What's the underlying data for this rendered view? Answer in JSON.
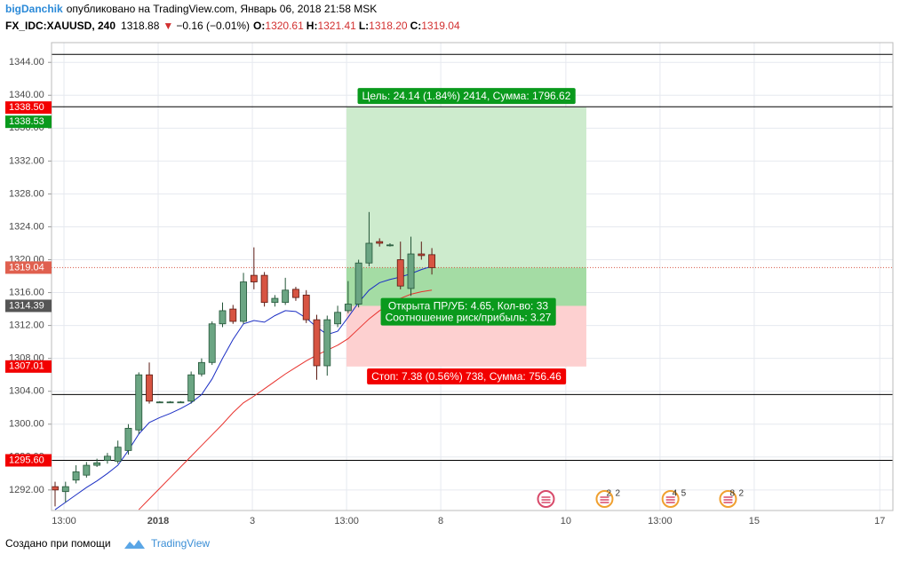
{
  "header": {
    "author": "bigDanchik",
    "published": "опубликовано на TradingView.com, Январь 06, 2018 21:58 MSK",
    "symbol": "FX_IDC:XAUUSD, 240",
    "last": "1318.88",
    "arrow": "▼",
    "change": "−0.16 (−0.01%)",
    "ohlc": [
      [
        "O:",
        "1320.61"
      ],
      [
        "H:",
        "1321.41"
      ],
      [
        "L:",
        "1318.20"
      ],
      [
        "C:",
        "1319.04"
      ]
    ]
  },
  "footer": {
    "text": "Создано при помощи",
    "brand": "TradingView"
  },
  "chart_data": {
    "type": "candlestick",
    "x": [
      0,
      1,
      2,
      3,
      4,
      5,
      6,
      7,
      8,
      9,
      10,
      11,
      12,
      13,
      14,
      15,
      16,
      17,
      18,
      19,
      20,
      21,
      22,
      23,
      24,
      25,
      26,
      27,
      28,
      29,
      30,
      31,
      32,
      33,
      34,
      35,
      36
    ],
    "open": [
      1292.4,
      1291.8,
      1293.2,
      1293.8,
      1295.0,
      1295.6,
      1295.5,
      1296.8,
      1299.3,
      1306.0,
      1302.7,
      1302.7,
      1302.7,
      1302.8,
      1306.1,
      1307.5,
      1312.2,
      1314.0,
      1312.5,
      1318.1,
      1318.1,
      1314.8,
      1314.8,
      1316.4,
      1315.7,
      1312.7,
      1307.1,
      1312.2,
      1313.8,
      1314.6,
      1319.6,
      1322.2,
      1321.8,
      1320.0,
      1316.5,
      1320.7,
      1320.61
    ],
    "high": [
      1293,
      1293,
      1295,
      1295.4,
      1295.8,
      1296.5,
      1298,
      1300,
      1306.3,
      1307.5,
      1302.8,
      1302.8,
      1302.8,
      1306.4,
      1308,
      1312.5,
      1314.8,
      1314.5,
      1318.4,
      1321.5,
      1318.5,
      1315.7,
      1317.8,
      1316.7,
      1316.3,
      1313.3,
      1313.2,
      1314.4,
      1317.4,
      1320.0,
      1325.8,
      1322.6,
      1322.0,
      1322.2,
      1322.8,
      1322.2,
      1321.41
    ],
    "low": [
      1290,
      1290.5,
      1292.8,
      1293.5,
      1294.8,
      1295.2,
      1295.2,
      1296.3,
      1298.8,
      1302.5,
      1302.6,
      1302.6,
      1302.6,
      1302.5,
      1305.8,
      1307.2,
      1311.8,
      1312.2,
      1312.2,
      1316.4,
      1314.3,
      1314.3,
      1314.5,
      1315.0,
      1312.3,
      1305.4,
      1305.9,
      1311.8,
      1313.5,
      1314.2,
      1319.2,
      1321.6,
      1321.6,
      1316.4,
      1315.6,
      1320.0,
      1318.2
    ],
    "close": [
      1292.0,
      1292.4,
      1294.2,
      1295.0,
      1295.3,
      1296.1,
      1297.2,
      1299.5,
      1306.0,
      1302.8,
      1302.7,
      1302.7,
      1302.7,
      1306.0,
      1307.5,
      1312.2,
      1313.8,
      1312.5,
      1317.3,
      1317.3,
      1314.8,
      1315.3,
      1316.3,
      1315.4,
      1312.7,
      1307.1,
      1312.7,
      1313.6,
      1314.6,
      1319.6,
      1322.0,
      1322.0,
      1321.8,
      1316.8,
      1320.7,
      1320.5,
      1319.04
    ],
    "up_color": "#6ba583",
    "down_color": "#d75442",
    "lines": [
      {
        "color": "#1c2fc4",
        "values": [
          1289.6,
          1290.5,
          1291.4,
          1292.3,
          1293.1,
          1294.0,
          1295.0,
          1296.8,
          1298.8,
          1300.2,
          1300.8,
          1301.3,
          1301.9,
          1302.6,
          1303.6,
          1305.5,
          1308.0,
          1310.3,
          1312.2,
          1312.6,
          1312.4,
          1313.2,
          1313.8,
          1313.7,
          1312.9,
          1311.8,
          1310.9,
          1311.3,
          1313.0,
          1314.8,
          1316.3,
          1317.2,
          1317.6,
          1317.9,
          1318.3,
          1318.8,
          1319.2
        ]
      },
      {
        "color": "#e8322d",
        "values": [
          null,
          null,
          null,
          null,
          null,
          null,
          null,
          null,
          1289.6,
          1290.9,
          1292.2,
          1293.5,
          1294.8,
          1296.1,
          1297.4,
          1298.7,
          1300.0,
          1301.4,
          1302.6,
          1303.4,
          1304.3,
          1305.2,
          1306.1,
          1306.9,
          1307.7,
          1308.4,
          1309.0,
          1309.6,
          1310.4,
          1311.6,
          1312.8,
          1313.8,
          1314.6,
          1315.3,
          1315.8,
          1316.1,
          1316.3
        ]
      }
    ],
    "xlim": [
      -0.34,
      80.05
    ],
    "ylim": [
      1289.5,
      1346.4
    ],
    "xticks": [
      {
        "value": 0.85,
        "label": "13:00"
      },
      {
        "value": 9.85,
        "label": "2018"
      },
      {
        "value": 18.85,
        "label": "3"
      },
      {
        "value": 27.85,
        "label": "13:00"
      },
      {
        "value": 36.85,
        "label": "8"
      },
      {
        "value": 48.8,
        "label": "10"
      },
      {
        "value": 57.8,
        "label": "13:00"
      },
      {
        "value": 66.8,
        "label": "15"
      },
      {
        "value": 78.8,
        "label": "17"
      }
    ],
    "yticks": [
      {
        "value": 1292,
        "label": "1292.00"
      },
      {
        "value": 1296,
        "label": "1296.00"
      },
      {
        "value": 1300,
        "label": "1300.00"
      },
      {
        "value": 1304,
        "label": "1304.00"
      },
      {
        "value": 1308,
        "label": "1308.00"
      },
      {
        "value": 1312,
        "label": "1312.00"
      },
      {
        "value": 1316,
        "label": "1316.00"
      },
      {
        "value": 1320,
        "label": "1320.00"
      },
      {
        "value": 1324,
        "label": "1324.00"
      },
      {
        "value": 1328,
        "label": "1328.00"
      },
      {
        "value": 1332,
        "label": "1332.00"
      },
      {
        "value": 1336,
        "label": "1336.00"
      },
      {
        "value": 1340,
        "label": "1340.00"
      },
      {
        "value": 1344,
        "label": "1344.00"
      }
    ],
    "grid": true,
    "hlines": [
      1344.97,
      1338.6,
      1303.6,
      1295.6
    ],
    "current_price": 1319.04,
    "price_labels": [
      {
        "value": 1338.5,
        "label": "1338.50",
        "color": "#f20000"
      },
      {
        "value": 1338.53,
        "label": "1338.53",
        "color": "#0a9a1d"
      },
      {
        "value": 1319.04,
        "label": "1319.04",
        "color": "#e0604f"
      },
      {
        "value": 1314.39,
        "label": "1314.39",
        "color": "#555555"
      },
      {
        "value": 1307.01,
        "label": "1307.01",
        "color": "#f20000"
      },
      {
        "value": 1295.6,
        "label": "1295.60",
        "color": "#f20000"
      }
    ],
    "position": {
      "entry": 1314.39,
      "target": 1338.53,
      "stop": 1307.01,
      "x_start": 27.84,
      "x_end": 50.76,
      "target_label": "Цель: 24.14 (1.84%) 2414, Сумма: 1796.62",
      "entry_label": [
        "Открыта ПР/УБ: 4.65, Кол-во: 33",
        "Соотношение риск/прибыль: 3.27"
      ],
      "stop_label": "Стоп: 7.38 (0.56%) 738, Сумма: 756.46"
    },
    "events": [
      {
        "x": 46.9
      },
      {
        "x": 52.5,
        "labels": [
          "2",
          "2"
        ]
      },
      {
        "x": 58.8,
        "labels": [
          "4",
          "5"
        ]
      },
      {
        "x": 64.3,
        "labels": [
          "8",
          "2"
        ]
      }
    ]
  }
}
